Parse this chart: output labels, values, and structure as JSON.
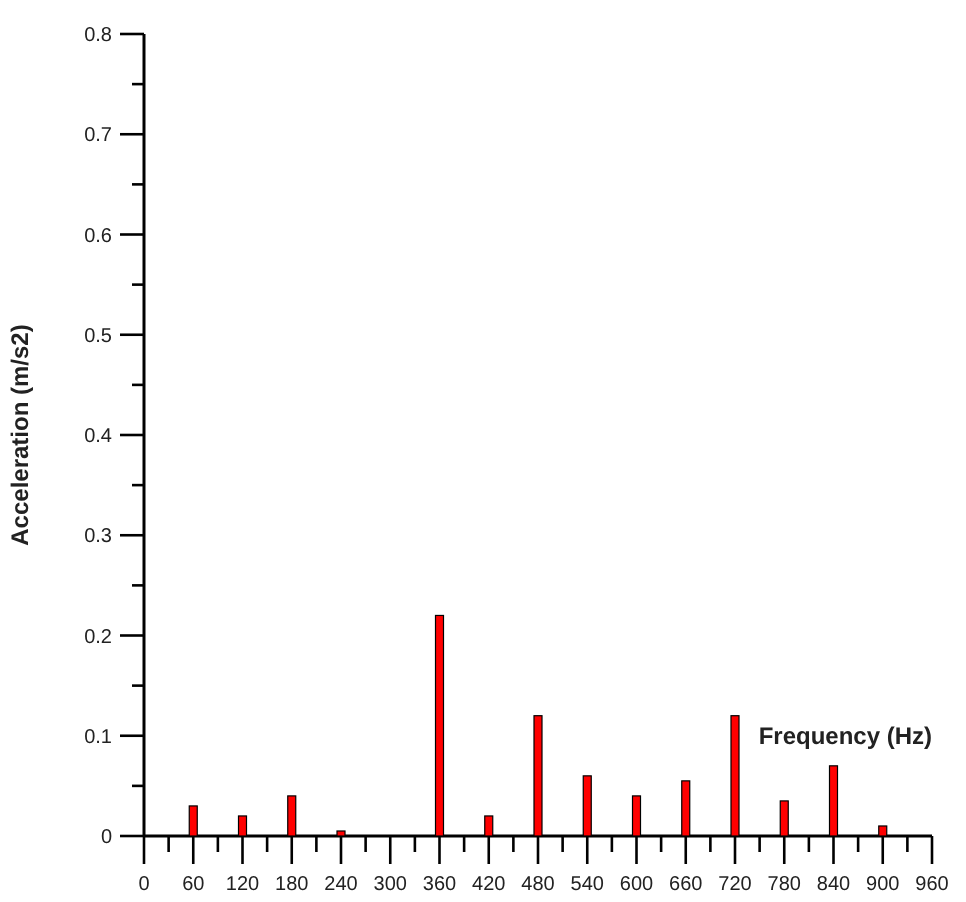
{
  "chart_data": {
    "type": "bar",
    "xlabel": "Frequency (Hz)",
    "ylabel": "Acceleration (m/s2)",
    "x": [
      60,
      120,
      180,
      240,
      360,
      420,
      480,
      540,
      600,
      660,
      720,
      780,
      840,
      900
    ],
    "values": [
      0.03,
      0.02,
      0.04,
      0.005,
      0.22,
      0.02,
      0.12,
      0.06,
      0.04,
      0.055,
      0.12,
      0.035,
      0.07,
      0.01
    ],
    "color": "#ff0000",
    "xlim": [
      0,
      960
    ],
    "xticks": [
      0,
      {
        "value": 30,
        "label": null
      },
      60,
      {
        "value": 90,
        "label": null
      },
      120,
      {
        "value": 150,
        "label": null
      },
      180,
      {
        "value": 210,
        "label": null
      },
      240,
      {
        "value": 270,
        "label": null
      },
      300,
      {
        "value": 330,
        "label": null
      },
      360,
      {
        "value": 390,
        "label": null
      },
      420,
      {
        "value": 450,
        "label": null
      },
      480,
      {
        "value": 510,
        "label": null
      },
      540,
      {
        "value": 570,
        "label": null
      },
      600,
      {
        "value": 630,
        "label": null
      },
      660,
      {
        "value": 690,
        "label": null
      },
      720,
      {
        "value": 750,
        "label": null
      },
      780,
      {
        "value": 810,
        "label": null
      },
      840,
      {
        "value": 870,
        "label": null
      },
      900,
      {
        "value": 930,
        "label": null
      },
      960
    ],
    "ylim": [
      0,
      0.8
    ],
    "yticks": [
      0,
      {
        "value": 0.05,
        "label": null
      },
      0.1,
      {
        "value": 0.15,
        "label": null
      },
      0.2,
      {
        "value": 0.25,
        "label": null
      },
      0.3,
      {
        "value": 0.35,
        "label": null
      },
      0.4,
      {
        "value": 0.45,
        "label": null
      },
      0.5,
      {
        "value": 0.55,
        "label": null
      },
      0.6,
      {
        "value": 0.65,
        "label": null
      },
      0.7,
      {
        "value": 0.75,
        "label": null
      },
      0.8
    ],
    "grid": false
  }
}
